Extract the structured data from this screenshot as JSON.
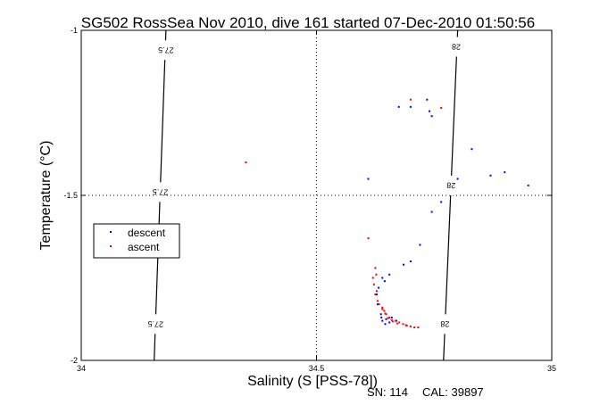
{
  "chart_data": {
    "type": "scatter",
    "title": "SG502 RossSea Nov 2010, dive 161 started 07-Dec-2010 01:50:56",
    "xlabel": "Salinity (S [PSS-78])",
    "ylabel": "Temperature (°C)",
    "xlim": [
      34,
      35
    ],
    "ylim": [
      -2,
      -1
    ],
    "xticks": [
      "34",
      "34.5",
      "35"
    ],
    "yticks": [
      "-2",
      "-1.5",
      "-1"
    ],
    "grid": "dotted",
    "legend": {
      "placement": "center-left",
      "entries": [
        "descent",
        "ascent"
      ]
    },
    "isopycnals": [
      {
        "label": "27.5",
        "points": [
          [
            34.18,
            -1.0
          ],
          [
            34.155,
            -2.0
          ]
        ],
        "label_positions": [
          [
            34.18,
            -1.06
          ],
          [
            34.168,
            -1.49
          ],
          [
            34.158,
            -1.89
          ]
        ]
      },
      {
        "label": "28",
        "points": [
          [
            34.8,
            -1.0
          ],
          [
            34.77,
            -2.0
          ]
        ],
        "label_positions": [
          [
            34.797,
            -1.05
          ],
          [
            34.786,
            -1.47
          ],
          [
            34.773,
            -1.89
          ]
        ]
      }
    ],
    "series": [
      {
        "name": "descent",
        "color": "#0000ff",
        "points": [
          [
            34.675,
            -1.232
          ],
          [
            34.7,
            -1.232
          ],
          [
            34.735,
            -1.21
          ],
          [
            34.74,
            -1.245
          ],
          [
            34.745,
            -1.26
          ],
          [
            34.61,
            -1.45
          ],
          [
            34.765,
            -1.52
          ],
          [
            34.745,
            -1.55
          ],
          [
            34.72,
            -1.65
          ],
          [
            34.7,
            -1.7
          ],
          [
            34.685,
            -1.71
          ],
          [
            34.64,
            -1.75
          ],
          [
            34.8,
            -1.45
          ],
          [
            34.87,
            -1.44
          ],
          [
            34.9,
            -1.43
          ],
          [
            34.95,
            -1.47
          ],
          [
            34.83,
            -1.36
          ],
          [
            34.655,
            -1.74
          ],
          [
            34.645,
            -1.76
          ],
          [
            34.632,
            -1.78
          ],
          [
            34.628,
            -1.8
          ],
          [
            34.63,
            -1.83
          ],
          [
            34.637,
            -1.86
          ],
          [
            34.64,
            -1.88
          ],
          [
            34.648,
            -1.875
          ],
          [
            34.655,
            -1.885
          ],
          [
            34.66,
            -1.87
          ],
          [
            34.646,
            -1.89
          ],
          [
            34.638,
            -1.87
          ],
          [
            34.67,
            -1.88
          ]
        ]
      },
      {
        "name": "ascent",
        "color": "#ff0000",
        "points": [
          [
            34.35,
            -1.4
          ],
          [
            34.7,
            -1.21
          ],
          [
            34.765,
            -1.235
          ],
          [
            34.61,
            -1.63
          ],
          [
            34.625,
            -1.72
          ],
          [
            34.627,
            -1.74
          ],
          [
            34.62,
            -1.75
          ],
          [
            34.622,
            -1.77
          ],
          [
            34.628,
            -1.79
          ],
          [
            34.625,
            -1.8
          ],
          [
            34.63,
            -1.82
          ],
          [
            34.64,
            -1.84
          ],
          [
            34.644,
            -1.85
          ],
          [
            34.648,
            -1.86
          ],
          [
            34.655,
            -1.87
          ],
          [
            34.66,
            -1.878
          ],
          [
            34.668,
            -1.88
          ],
          [
            34.676,
            -1.885
          ],
          [
            34.684,
            -1.89
          ],
          [
            34.692,
            -1.895
          ],
          [
            34.7,
            -1.897
          ],
          [
            34.708,
            -1.9
          ],
          [
            34.716,
            -1.9
          ],
          [
            34.652,
            -1.872
          ],
          [
            34.646,
            -1.858
          ],
          [
            34.64,
            -1.845
          ],
          [
            34.662,
            -1.882
          ],
          [
            34.672,
            -1.888
          ],
          [
            34.69,
            -1.893
          ],
          [
            34.633,
            -1.83
          ]
        ]
      }
    ]
  },
  "footer": {
    "sn_text": "SN: 114",
    "cal_text": "CAL: 39897"
  }
}
